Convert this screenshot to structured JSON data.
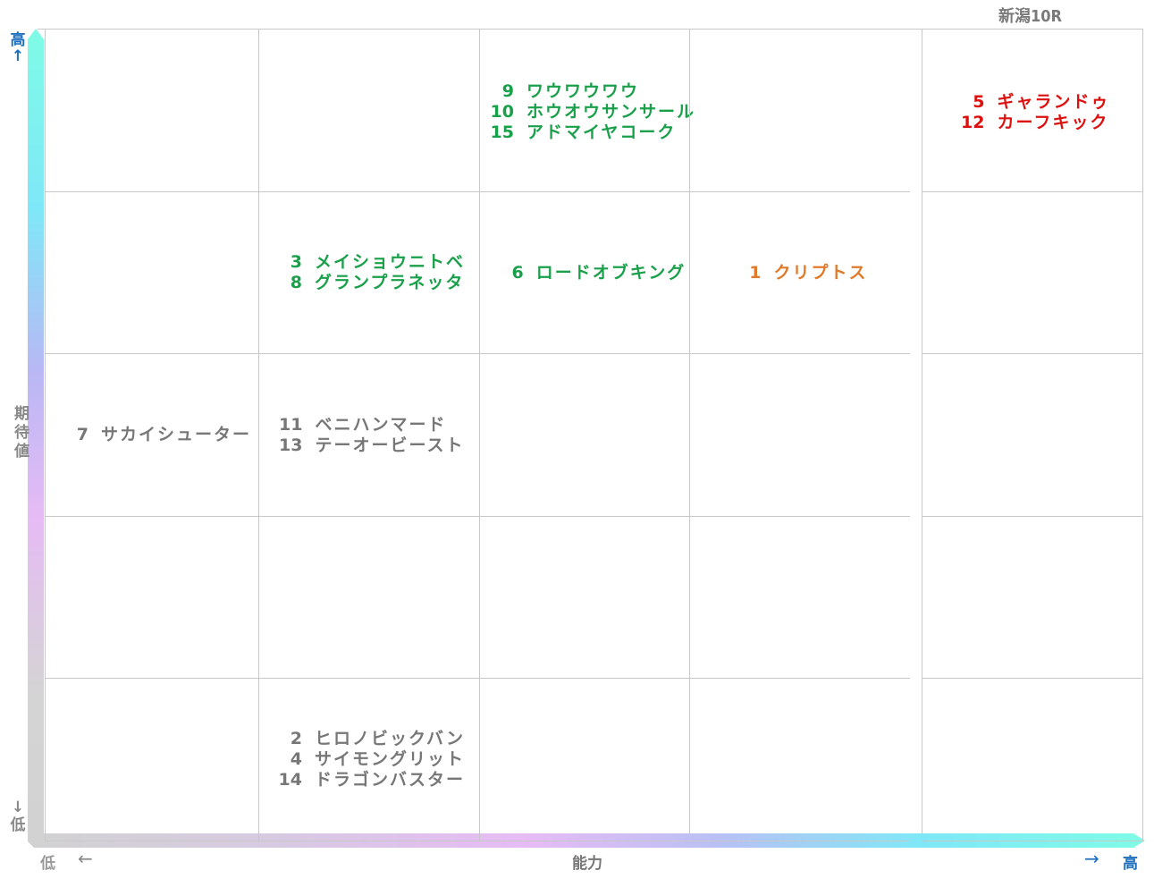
{
  "title": "新潟10R",
  "chart_data": {
    "type": "table",
    "x_axis": {
      "label": "能力",
      "low": "低",
      "high": "高",
      "low_arrow": "←",
      "high_arrow": "→"
    },
    "y_axis": {
      "label": "期待値",
      "low": "低",
      "high": "高",
      "up_arrow": "↑",
      "down_arrow": "↓"
    },
    "rows": 5,
    "cols": 5,
    "colors": {
      "green": "#1aa04a",
      "red": "#dd1010",
      "orange": "#e07a2a",
      "gray": "#777777"
    },
    "cells": [
      {
        "row": 1,
        "col": 3,
        "color": "green",
        "horses": [
          {
            "num": "9",
            "name": "ワウワウワウ"
          },
          {
            "num": "10",
            "name": "ホウオウサンサール"
          },
          {
            "num": "15",
            "name": "アドマイヤコーク"
          }
        ]
      },
      {
        "row": 1,
        "col": 5,
        "color": "red",
        "horses": [
          {
            "num": "5",
            "name": "ギャランドゥ"
          },
          {
            "num": "12",
            "name": "カーフキック"
          }
        ]
      },
      {
        "row": 2,
        "col": 2,
        "color": "green",
        "horses": [
          {
            "num": "3",
            "name": "メイショウニトベ"
          },
          {
            "num": "8",
            "name": "グランプラネッタ"
          }
        ]
      },
      {
        "row": 2,
        "col": 3,
        "color": "green",
        "horses": [
          {
            "num": "6",
            "name": "ロードオブキング"
          }
        ]
      },
      {
        "row": 2,
        "col": 4,
        "color": "orange",
        "horses": [
          {
            "num": "1",
            "name": "クリプトス"
          }
        ]
      },
      {
        "row": 3,
        "col": 1,
        "color": "gray",
        "horses": [
          {
            "num": "7",
            "name": "サカイシューター"
          }
        ]
      },
      {
        "row": 3,
        "col": 2,
        "color": "gray",
        "horses": [
          {
            "num": "11",
            "name": "ベニハンマード"
          },
          {
            "num": "13",
            "name": "テーオービースト"
          }
        ]
      },
      {
        "row": 5,
        "col": 2,
        "color": "gray",
        "horses": [
          {
            "num": "2",
            "name": "ヒロノビックバン"
          },
          {
            "num": "4",
            "name": "サイモングリット"
          },
          {
            "num": "14",
            "name": "ドラゴンバスター"
          }
        ]
      }
    ]
  }
}
